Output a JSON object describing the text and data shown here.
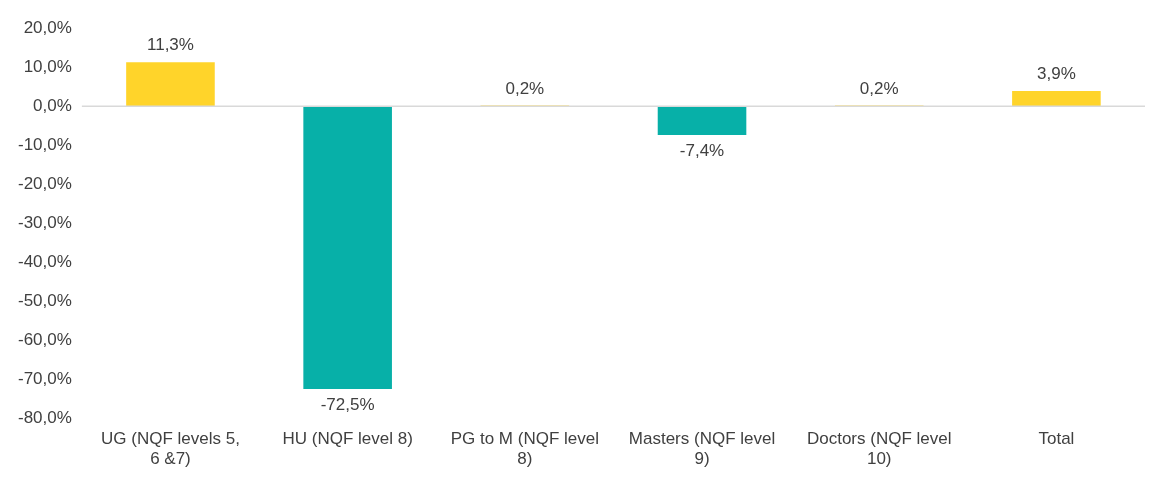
{
  "chart_data": {
    "type": "bar",
    "categories": [
      "UG (NQF levels 5, 6 &7)",
      "HU (NQF level 8)",
      "PG to M (NQF level 8)",
      "Masters (NQF level 9)",
      "Doctors (NQF level 10)",
      "Total"
    ],
    "values": [
      11.3,
      -72.5,
      0.2,
      -7.4,
      0.2,
      3.9
    ],
    "colors": [
      "#ffd42a",
      "#07b0a8",
      "#ffd42a",
      "#07b0a8",
      "#ffd42a",
      "#ffd42a"
    ],
    "value_labels": [
      "11,3%",
      "-72,5%",
      "0,2%",
      "-7,4%",
      "0,2%",
      "3,9%"
    ],
    "ylim": [
      -80,
      20
    ],
    "yticks": [
      {
        "value": 20,
        "label": "20,0%"
      },
      {
        "value": 10,
        "label": "10,0%"
      },
      {
        "value": 0,
        "label": "0,0%"
      },
      {
        "value": -10,
        "label": "-10,0%"
      },
      {
        "value": -20,
        "label": "-20,0%"
      },
      {
        "value": -30,
        "label": "-30,0%"
      },
      {
        "value": -40,
        "label": "-40,0%"
      },
      {
        "value": -50,
        "label": "-50,0%"
      },
      {
        "value": -60,
        "label": "-60,0%"
      },
      {
        "value": -70,
        "label": "-70,0%"
      },
      {
        "value": -80,
        "label": "-80,0%"
      }
    ],
    "ref_lines": [
      {
        "axis": "y",
        "value": 0,
        "color": "#d9d9d9"
      }
    ],
    "grid": false,
    "legend": false
  }
}
